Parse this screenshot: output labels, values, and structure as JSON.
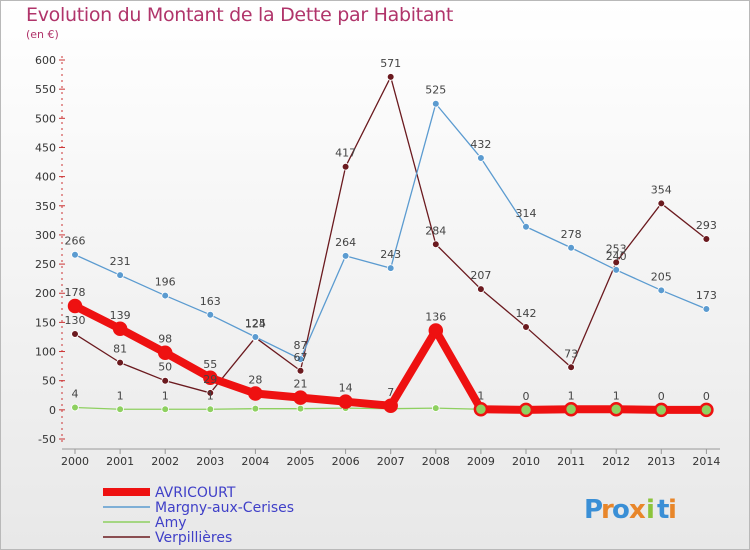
{
  "header": {
    "title": "Evolution du Montant de la Dette par Habitant",
    "subtitle": "(en €)"
  },
  "logo": {
    "text": "Proxiti",
    "letters": [
      {
        "ch": "P",
        "color": "#3a8fd6"
      },
      {
        "ch": "r",
        "color": "#e8862a"
      },
      {
        "ch": "o",
        "color": "#3a8fd6"
      },
      {
        "ch": "x",
        "color": "#e8862a"
      },
      {
        "ch": "i",
        "color": "#8cc43c"
      },
      {
        "ch": "t",
        "color": "#3a8fd6"
      },
      {
        "ch": "i",
        "color": "#e8862a"
      }
    ]
  },
  "chart_data": {
    "type": "line",
    "x": [
      "2000",
      "2001",
      "2002",
      "2003",
      "2004",
      "2005",
      "2006",
      "2007",
      "2008",
      "2009",
      "2010",
      "2011",
      "2012",
      "2013",
      "2014"
    ],
    "ylim": [
      -50,
      600
    ],
    "yticks": [
      -50,
      0,
      50,
      100,
      150,
      200,
      250,
      300,
      350,
      400,
      450,
      500,
      550,
      600
    ],
    "grid": false,
    "legend_position": "bottom-left",
    "series": [
      {
        "name": "Verpillières",
        "color": "#6b1a1f",
        "values": [
          130,
          81,
          50,
          29,
          124,
          67,
          417,
          571,
          284,
          207,
          142,
          73,
          253,
          354,
          293
        ],
        "labels": [
          "130",
          "81",
          "50",
          "29",
          "124",
          "67",
          "417",
          "571",
          "284",
          "207",
          "142",
          "73",
          "253",
          "354",
          "293"
        ]
      },
      {
        "name": "Margny-aux-Cerises",
        "color": "#5b9bd0",
        "values": [
          266,
          231,
          196,
          163,
          125,
          87,
          264,
          243,
          525,
          432,
          314,
          278,
          240,
          205,
          173
        ],
        "labels": [
          "266",
          "231",
          "196",
          "163",
          "125",
          "87",
          "264",
          "243",
          "525",
          "432",
          "314",
          "278",
          "240",
          "205",
          "173"
        ]
      },
      {
        "name": "Amy",
        "color": "#8ed060",
        "values": [
          4,
          1,
          1,
          1,
          2,
          2,
          3,
          2,
          3,
          1,
          1,
          1,
          1,
          1,
          1
        ],
        "labels": [
          "4",
          "1",
          "1",
          "1",
          "",
          "",
          "",
          "",
          "",
          "",
          "",
          "",
          "",
          "",
          ""
        ]
      },
      {
        "name": "AVRICOURT",
        "color": "#ee1111",
        "values": [
          178,
          139,
          98,
          55,
          28,
          21,
          14,
          7,
          136,
          1,
          0,
          1,
          1,
          0,
          0
        ],
        "labels": [
          "178",
          "139",
          "98",
          "55",
          "28",
          "21",
          "14",
          "7",
          "136",
          "1",
          "0",
          "1",
          "1",
          "0",
          "0"
        ]
      }
    ],
    "legend": [
      "AVRICOURT",
      "Margny-aux-Cerises",
      "Amy",
      "Verpillières"
    ]
  }
}
